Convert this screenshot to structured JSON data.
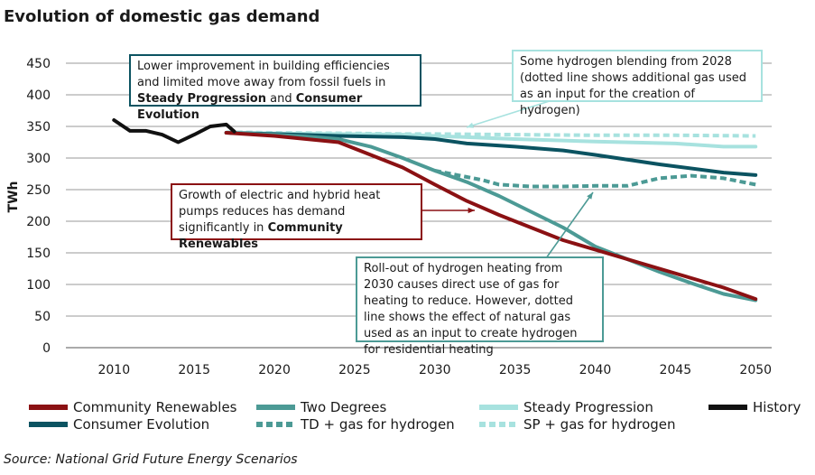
{
  "title": "Evolution of domestic gas demand",
  "source": "Source: National Grid Future Energy Scenarios",
  "colors": {
    "community": "#8b1113",
    "two_degrees": "#4c9a95",
    "steady": "#a7e2df",
    "history": "#111111",
    "consumer": "#0b5361",
    "grid": "#999999"
  },
  "annotations": {
    "a1": {
      "pre": "Lower improvement in building efficiencies and limited move away from fossil fuels in ",
      "b1": "Steady Progression",
      "mid": " and ",
      "b2": "Consumer Evolution"
    },
    "a2": {
      "pre": "Growth of electric and hybrid heat pumps reduces has demand significantly in ",
      "b1": "Community Renewables"
    },
    "a3": {
      "text": "Some hydrogen blending from 2028 (dotted line shows additional gas used as an input for the creation of hydrogen)"
    },
    "a4": {
      "text": "Roll-out of hydrogen heating from 2030 causes direct use of gas for heating to reduce. However, dotted line shows the effect of natural gas used as an input to create hydrogen for residential heating"
    }
  },
  "chart_data": {
    "type": "line",
    "title": "Evolution of domestic gas demand",
    "xlabel": "",
    "ylabel": "TWh",
    "xlim": [
      2007,
      2051
    ],
    "ylim": [
      0,
      450
    ],
    "x_ticks": [
      2010,
      2015,
      2020,
      2025,
      2030,
      2035,
      2040,
      2045,
      2050
    ],
    "y_ticks": [
      0,
      50,
      100,
      150,
      200,
      250,
      300,
      350,
      400,
      450
    ],
    "grid": "horizontal",
    "legend_position": "bottom",
    "series": [
      {
        "key": "community",
        "name": "Community Renewables",
        "style": "solid",
        "x": [
          2017,
          2020,
          2022,
          2024,
          2026,
          2028,
          2030,
          2032,
          2034,
          2036,
          2038,
          2040,
          2042,
          2044,
          2046,
          2048,
          2050
        ],
        "y": [
          340,
          335,
          330,
          325,
          305,
          285,
          258,
          232,
          210,
          190,
          170,
          155,
          140,
          125,
          110,
          95,
          77
        ]
      },
      {
        "key": "two_degrees",
        "name": "Two Degrees",
        "style": "solid",
        "x": [
          2017,
          2020,
          2022,
          2024,
          2026,
          2028,
          2030,
          2032,
          2034,
          2036,
          2038,
          2040,
          2042,
          2044,
          2046,
          2048,
          2050
        ],
        "y": [
          340,
          337,
          334,
          330,
          318,
          300,
          280,
          262,
          240,
          215,
          190,
          160,
          140,
          120,
          102,
          85,
          75
        ]
      },
      {
        "key": "steady",
        "name": "Steady Progression",
        "style": "solid",
        "x": [
          2017,
          2020,
          2024,
          2028,
          2030,
          2035,
          2040,
          2045,
          2048,
          2050
        ],
        "y": [
          340,
          339,
          338,
          337,
          335,
          330,
          326,
          323,
          318,
          318
        ]
      },
      {
        "key": "history",
        "name": "History",
        "style": "solid",
        "x": [
          2010,
          2011,
          2012,
          2013,
          2014,
          2015,
          2016,
          2017,
          2017.5
        ],
        "y": [
          360,
          343,
          343,
          337,
          325,
          337,
          350,
          353,
          342
        ]
      },
      {
        "key": "consumer",
        "name": "Consumer Evolution",
        "style": "solid",
        "x": [
          2017,
          2020,
          2024,
          2028,
          2030,
          2032,
          2035,
          2038,
          2040,
          2044,
          2048,
          2050
        ],
        "y": [
          340,
          338,
          335,
          333,
          330,
          323,
          318,
          312,
          305,
          290,
          277,
          273
        ]
      },
      {
        "key": "td_h2",
        "name": "TD + gas for hydrogen",
        "style": "dashed",
        "x": [
          2030,
          2031,
          2032,
          2033,
          2034,
          2036,
          2038,
          2040,
          2042,
          2044,
          2046,
          2048,
          2050
        ],
        "y": [
          280,
          275,
          270,
          265,
          258,
          255,
          255,
          256,
          256,
          268,
          272,
          268,
          258
        ]
      },
      {
        "key": "sp_h2",
        "name": "SP + gas for hydrogen",
        "style": "dashed",
        "x": [
          2017,
          2020,
          2025,
          2028,
          2030,
          2035,
          2040,
          2045,
          2050
        ],
        "y": [
          341,
          340,
          339,
          338,
          338,
          337,
          336,
          336,
          335
        ]
      }
    ],
    "legend": [
      {
        "key": "community",
        "name": "Community Renewables"
      },
      {
        "key": "two_degrees",
        "name": "Two Degrees"
      },
      {
        "key": "steady",
        "name": "Steady Progression"
      },
      {
        "key": "history",
        "name": "History"
      },
      {
        "key": "consumer",
        "name": "Consumer Evolution"
      },
      {
        "key": "td_h2",
        "name": "TD + gas for hydrogen"
      },
      {
        "key": "sp_h2",
        "name": "SP + gas for hydrogen"
      }
    ]
  }
}
